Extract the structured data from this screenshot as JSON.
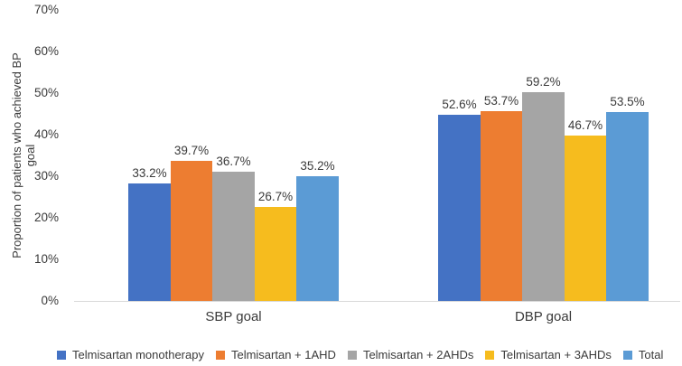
{
  "chart_data": {
    "type": "bar",
    "title": "",
    "categories": [
      "SBP goal",
      "DBP goal"
    ],
    "series": [
      {
        "name": "Telmisartan monotherapy",
        "color": "#4472C4",
        "values": [
          33.2,
          52.6
        ]
      },
      {
        "name": "Telmisartan + 1AHD",
        "color": "#ED7D31",
        "values": [
          39.7,
          53.7
        ]
      },
      {
        "name": "Telmisartan + 2AHDs",
        "color": "#A5A5A5",
        "values": [
          36.7,
          59.2
        ]
      },
      {
        "name": "Telmisartan + 3AHDs",
        "color": "#F6BC1E",
        "values": [
          26.7,
          46.7
        ]
      },
      {
        "name": "Total",
        "color": "#5B9BD5",
        "values": [
          35.2,
          53.5
        ]
      }
    ],
    "data_labels": [
      [
        "33.2%",
        "52.6%"
      ],
      [
        "39.7%",
        "53.7%"
      ],
      [
        "36.7%",
        "59.2%"
      ],
      [
        "26.7%",
        "46.7%"
      ],
      [
        "35.2%",
        "53.5%"
      ]
    ],
    "ylabel": "Proportion of patients who achieved BP goal",
    "ylabel_lines": [
      "Proportion of patients who achieved BP",
      "goal"
    ],
    "yticks": [
      "0%",
      "10%",
      "20%",
      "30%",
      "40%",
      "50%",
      "60%",
      "70%"
    ],
    "ylim": [
      0,
      70
    ],
    "grid": false,
    "legend_position": "bottom"
  },
  "colors": {
    "text": "#3a3a3a",
    "axis_line": "#d9d9d9",
    "background": "#ffffff"
  }
}
